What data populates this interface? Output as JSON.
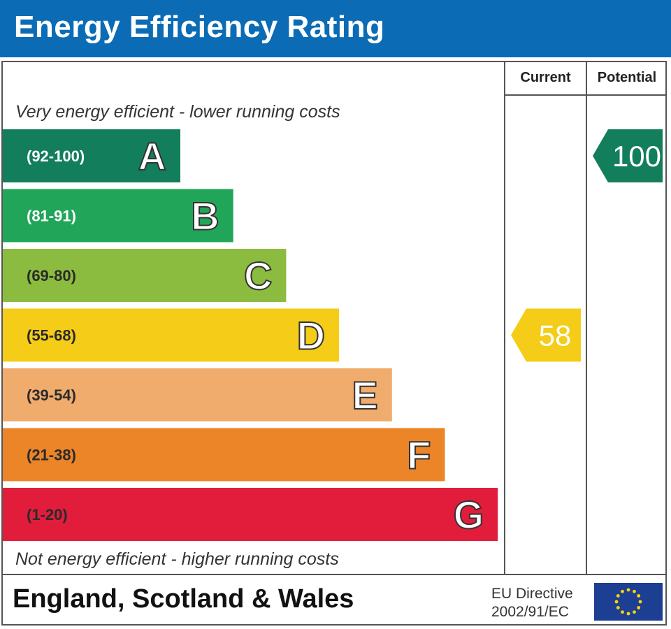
{
  "header": {
    "title": "Energy Efficiency Rating"
  },
  "columns": {
    "current": "Current",
    "potential": "Potential"
  },
  "descriptions": {
    "top": "Very energy efficient - lower running costs",
    "bottom": "Not energy efficient - higher running costs"
  },
  "footer": {
    "region": "England, Scotland & Wales",
    "directive_line1": "EU Directive",
    "directive_line2": "2002/91/EC"
  },
  "chart_data": {
    "type": "bar",
    "title": "Energy Efficiency Rating",
    "bands": [
      {
        "letter": "A",
        "range": "(92-100)",
        "color": "#137e5b"
      },
      {
        "letter": "B",
        "range": "(81-91)",
        "color": "#21a558"
      },
      {
        "letter": "C",
        "range": "(69-80)",
        "color": "#8cbc3f"
      },
      {
        "letter": "D",
        "range": "(55-68)",
        "color": "#f5cc17"
      },
      {
        "letter": "E",
        "range": "(39-54)",
        "color": "#f0ac6d"
      },
      {
        "letter": "F",
        "range": "(21-38)",
        "color": "#ec8428"
      },
      {
        "letter": "G",
        "range": "(1-20)",
        "color": "#e21d3c"
      }
    ],
    "current": {
      "value": "58",
      "band": "D",
      "color": "#f5cc17"
    },
    "potential": {
      "value": "100",
      "band": "A",
      "color": "#137e5b"
    }
  }
}
